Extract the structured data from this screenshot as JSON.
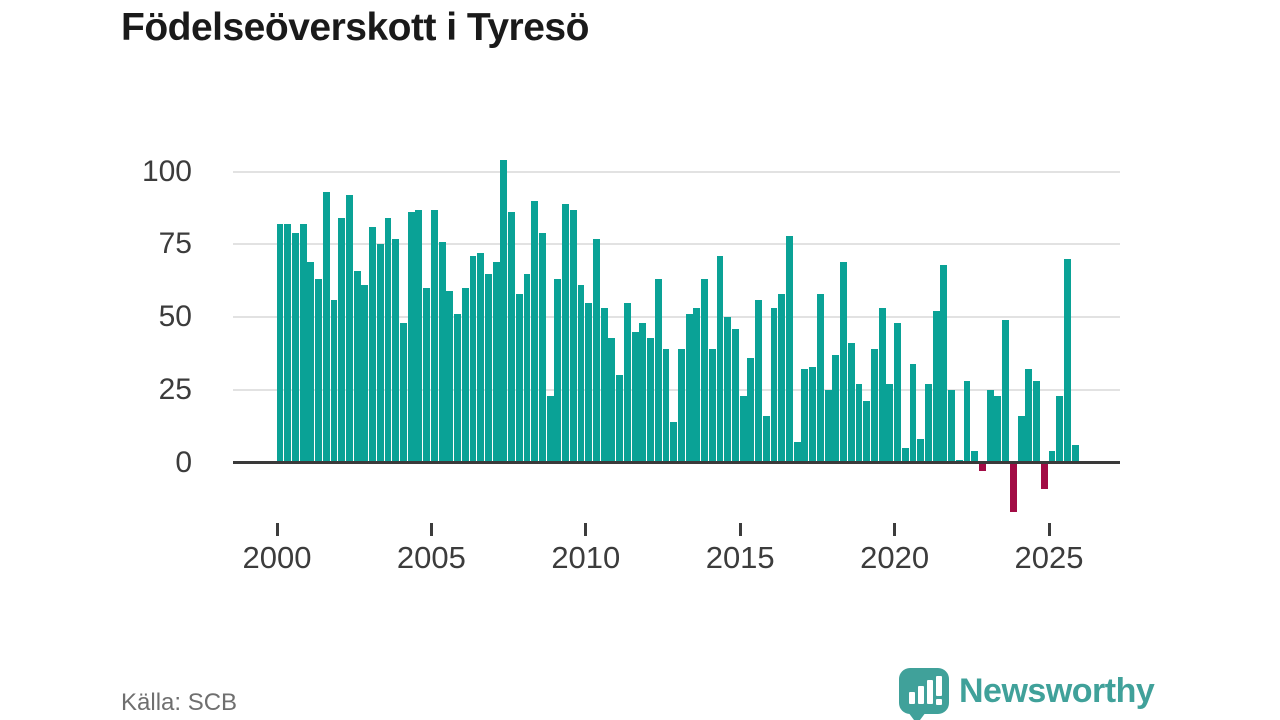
{
  "title": "Födelseöverskott i Tyresö",
  "source": "Källa: SCB",
  "branding": {
    "name": "Newsworthy",
    "logo": "bar-chart-speech-bubble"
  },
  "colors": {
    "bar_positive": "#0aa296",
    "bar_negative": "#a20c45",
    "brand_teal": "#40a19a",
    "title_text": "#1a1a1a",
    "axis_text": "#3c3c3c",
    "gridline": "#e2e2e2",
    "axis_line": "#3a3a3a",
    "source_text": "#6f6f6f"
  },
  "chart_data": {
    "type": "bar",
    "title": "Födelseöverskott i Tyresö",
    "frequency": "quarterly",
    "start_year": 2000,
    "grid": "horizontal gridlines at 0,25,50,75,100",
    "legend": "none",
    "ylim": [
      -25,
      110
    ],
    "y_ticks": [
      0,
      25,
      50,
      75,
      100
    ],
    "x_ticks": [
      2000,
      2005,
      2010,
      2015,
      2020,
      2025
    ],
    "values": [
      82,
      82,
      79,
      82,
      69,
      63,
      93,
      56,
      84,
      92,
      66,
      61,
      81,
      75,
      84,
      77,
      48,
      86,
      87,
      60,
      87,
      76,
      59,
      51,
      60,
      71,
      72,
      65,
      69,
      104,
      86,
      58,
      65,
      90,
      79,
      23,
      63,
      89,
      87,
      61,
      55,
      77,
      53,
      43,
      30,
      55,
      45,
      48,
      43,
      63,
      39,
      14,
      39,
      51,
      53,
      63,
      39,
      71,
      50,
      46,
      23,
      36,
      56,
      16,
      53,
      58,
      78,
      7,
      32,
      33,
      58,
      25,
      37,
      69,
      41,
      27,
      21,
      39,
      53,
      27,
      48,
      5,
      34,
      8,
      27,
      52,
      68,
      25,
      1,
      28,
      4,
      -3,
      25,
      23,
      49,
      -17,
      16,
      32,
      28,
      -9,
      4,
      23,
      70,
      6
    ]
  }
}
